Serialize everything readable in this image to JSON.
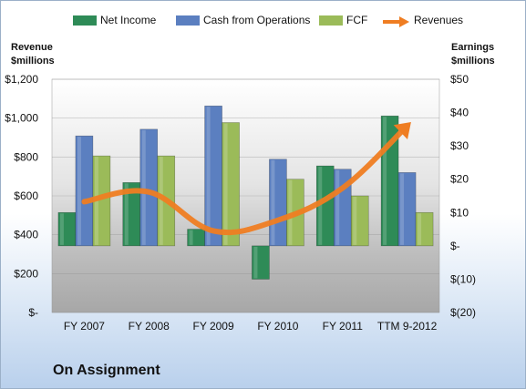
{
  "company": "On Assignment",
  "chart_data": {
    "type": "bar",
    "categories": [
      "FY 2007",
      "FY 2008",
      "FY 2009",
      "FY 2010",
      "FY 2011",
      "TTM 9-2012"
    ],
    "series": [
      {
        "name": "Net Income",
        "axis": "right",
        "values": [
          10,
          19,
          5,
          -10,
          24,
          39
        ],
        "color": "#2e8b57"
      },
      {
        "name": "Cash from Operations",
        "axis": "right",
        "values": [
          33,
          35,
          42,
          26,
          23,
          22
        ],
        "color": "#5b7fc0"
      },
      {
        "name": "FCF",
        "axis": "right",
        "values": [
          27,
          27,
          37,
          20,
          15,
          10
        ],
        "color": "#9bbb59"
      },
      {
        "name": "Revenues",
        "axis": "left",
        "type": "line",
        "values": [
          570,
          620,
          420,
          475,
          640,
          960
        ],
        "color": "#ef7d22"
      }
    ],
    "ylabel_left": "Revenue\n$millions",
    "ylabel_right": "Earnings\n$millions",
    "ylim_left": [
      0,
      1200
    ],
    "ylim_right": [
      -20,
      50
    ],
    "yticks_left": [
      "$-",
      "$200",
      "$400",
      "$600",
      "$800",
      "$1,000",
      "$1,200"
    ],
    "yticks_right": [
      "$(20)",
      "$(10)",
      "$-",
      "$10",
      "$20",
      "$30",
      "$40",
      "$50"
    ],
    "legend_position": "top"
  }
}
